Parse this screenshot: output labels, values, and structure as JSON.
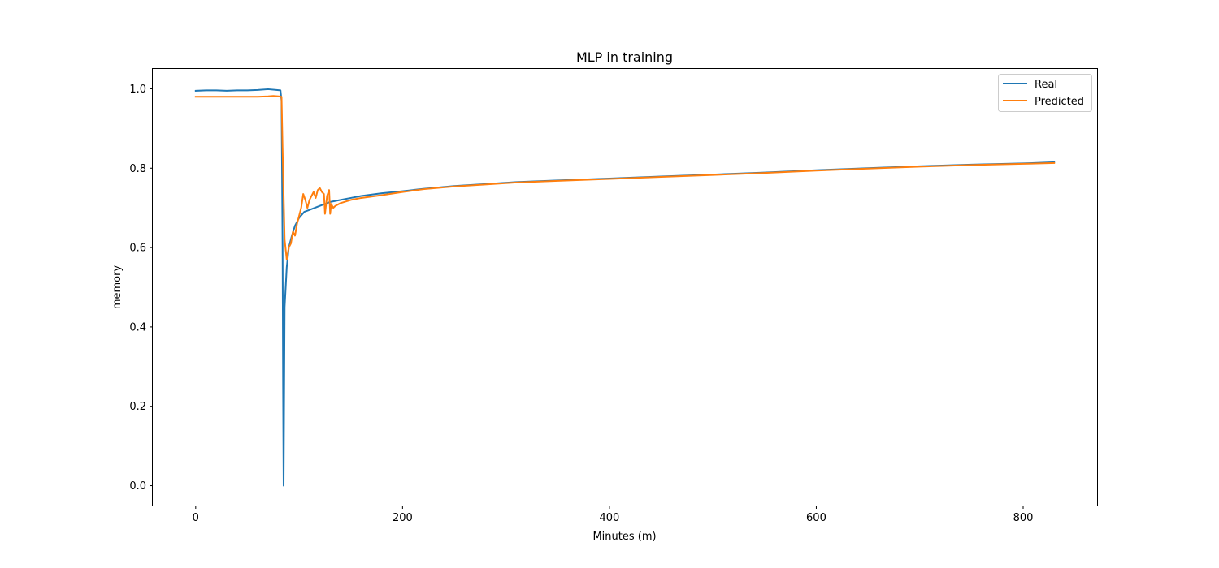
{
  "chart_data": {
    "type": "line",
    "title": "MLP in training",
    "xlabel": "Minutes (m)",
    "ylabel": "memory",
    "xlim": [
      -41.5,
      871.5
    ],
    "ylim": [
      -0.05,
      1.05
    ],
    "xticks": [
      0,
      200,
      400,
      600,
      800
    ],
    "yticks": [
      0.0,
      0.2,
      0.4,
      0.6,
      0.8,
      1.0
    ],
    "xtick_labels": [
      "0",
      "200",
      "400",
      "600",
      "800"
    ],
    "ytick_labels": [
      "0.0",
      "0.2",
      "0.4",
      "0.6",
      "0.8",
      "1.0"
    ],
    "grid": false,
    "legend_position": "upper right",
    "series": [
      {
        "name": "Real",
        "color": "#1f77b4",
        "points": [
          [
            0,
            0.995
          ],
          [
            10,
            0.996
          ],
          [
            20,
            0.996
          ],
          [
            30,
            0.995
          ],
          [
            40,
            0.996
          ],
          [
            50,
            0.996
          ],
          [
            60,
            0.997
          ],
          [
            70,
            0.999
          ],
          [
            78,
            0.997
          ],
          [
            82,
            0.996
          ],
          [
            83,
            0.97
          ],
          [
            84,
            0.6
          ],
          [
            84.5,
            0.25
          ],
          [
            85,
            0.0
          ],
          [
            86,
            0.45
          ],
          [
            88,
            0.55
          ],
          [
            90,
            0.6
          ],
          [
            93,
            0.63
          ],
          [
            96,
            0.655
          ],
          [
            100,
            0.675
          ],
          [
            105,
            0.69
          ],
          [
            110,
            0.695
          ],
          [
            115,
            0.7
          ],
          [
            120,
            0.705
          ],
          [
            125,
            0.71
          ],
          [
            130,
            0.715
          ],
          [
            140,
            0.72
          ],
          [
            150,
            0.725
          ],
          [
            160,
            0.73
          ],
          [
            180,
            0.737
          ],
          [
            200,
            0.742
          ],
          [
            220,
            0.748
          ],
          [
            250,
            0.755
          ],
          [
            280,
            0.76
          ],
          [
            310,
            0.765
          ],
          [
            350,
            0.769
          ],
          [
            400,
            0.774
          ],
          [
            450,
            0.779
          ],
          [
            500,
            0.784
          ],
          [
            550,
            0.789
          ],
          [
            600,
            0.795
          ],
          [
            650,
            0.8
          ],
          [
            700,
            0.805
          ],
          [
            750,
            0.809
          ],
          [
            800,
            0.812
          ],
          [
            830,
            0.815
          ]
        ]
      },
      {
        "name": "Predicted",
        "color": "#ff7f0e",
        "points": [
          [
            0,
            0.98
          ],
          [
            20,
            0.98
          ],
          [
            40,
            0.98
          ],
          [
            60,
            0.98
          ],
          [
            70,
            0.981
          ],
          [
            75,
            0.982
          ],
          [
            80,
            0.981
          ],
          [
            83,
            0.98
          ],
          [
            84,
            0.85
          ],
          [
            86,
            0.62
          ],
          [
            88,
            0.57
          ],
          [
            90,
            0.6
          ],
          [
            92,
            0.61
          ],
          [
            94,
            0.64
          ],
          [
            96,
            0.63
          ],
          [
            98,
            0.66
          ],
          [
            100,
            0.68
          ],
          [
            102,
            0.7
          ],
          [
            104,
            0.735
          ],
          [
            106,
            0.72
          ],
          [
            108,
            0.7
          ],
          [
            110,
            0.72
          ],
          [
            112,
            0.73
          ],
          [
            114,
            0.74
          ],
          [
            116,
            0.725
          ],
          [
            118,
            0.745
          ],
          [
            120,
            0.75
          ],
          [
            122,
            0.74
          ],
          [
            124,
            0.735
          ],
          [
            125,
            0.685
          ],
          [
            127,
            0.73
          ],
          [
            129,
            0.745
          ],
          [
            130,
            0.685
          ],
          [
            131,
            0.71
          ],
          [
            133,
            0.7
          ],
          [
            135,
            0.705
          ],
          [
            140,
            0.712
          ],
          [
            150,
            0.72
          ],
          [
            160,
            0.725
          ],
          [
            180,
            0.732
          ],
          [
            200,
            0.74
          ],
          [
            220,
            0.747
          ],
          [
            250,
            0.754
          ],
          [
            280,
            0.759
          ],
          [
            310,
            0.764
          ],
          [
            350,
            0.768
          ],
          [
            400,
            0.773
          ],
          [
            450,
            0.778
          ],
          [
            500,
            0.783
          ],
          [
            550,
            0.788
          ],
          [
            600,
            0.794
          ],
          [
            650,
            0.799
          ],
          [
            700,
            0.804
          ],
          [
            750,
            0.808
          ],
          [
            800,
            0.811
          ],
          [
            830,
            0.813
          ]
        ]
      }
    ]
  }
}
